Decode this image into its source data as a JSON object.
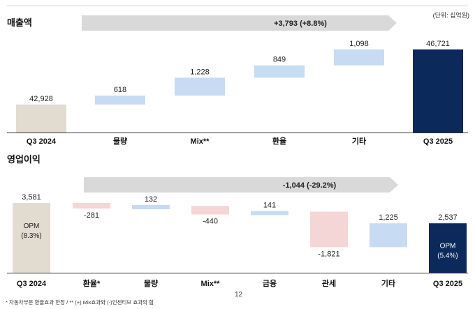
{
  "unit_note": "(단위: 십억원)",
  "footnote": "* 자동차부문 환율효과 한정 / ** (+) Mix효과와 (-)인센티브 효과의 합",
  "page_number": "12",
  "colors": {
    "start": "#e2dbd0",
    "end": "#0b2a5b",
    "increase": "#c7dbf2",
    "decrease": "#f4d6d6",
    "arrow": "#d9d9d9",
    "axis": "#333333",
    "end_text": "#ffffff"
  },
  "chart_data": [
    {
      "type": "waterfall",
      "title": "매출액",
      "categories": [
        "Q3 2024",
        "물량",
        "Mix**",
        "환율",
        "기타",
        "Q3 2025"
      ],
      "values": [
        42928,
        618,
        1228,
        849,
        1098,
        46721
      ],
      "value_labels": [
        "42,928",
        "618",
        "1,228",
        "849",
        "1,098",
        "46,721"
      ],
      "measure": [
        "absolute",
        "relative",
        "relative",
        "relative",
        "relative",
        "total"
      ],
      "change_annotation": "+3,793 (+8.8%)"
    },
    {
      "type": "waterfall",
      "title": "영업이익",
      "categories": [
        "Q3 2024",
        "환율*",
        "물량",
        "Mix**",
        "금융",
        "관세",
        "기타",
        "Q3 2025"
      ],
      "values": [
        3581,
        -281,
        132,
        -440,
        141,
        -1821,
        1225,
        2537
      ],
      "value_labels": [
        "3,581",
        "-281",
        "132",
        "-440",
        "141",
        "-1,821",
        "1,225",
        "2,537"
      ],
      "measure": [
        "absolute",
        "relative",
        "relative",
        "relative",
        "relative",
        "relative",
        "relative",
        "total"
      ],
      "change_annotation": "-1,044 (-29.2%)",
      "opm_start": "OPM\n(8.3%)",
      "opm_end": "OPM\n(5.4%)"
    }
  ]
}
